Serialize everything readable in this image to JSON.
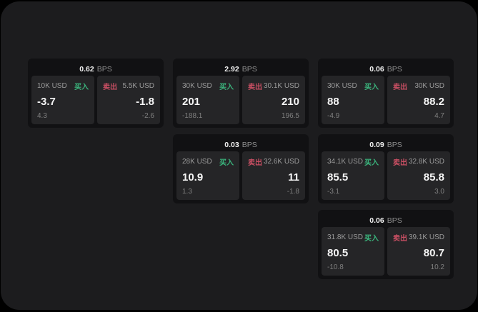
{
  "page": {
    "bps_suffix": "BPS",
    "buy_label": "买入",
    "sell_label": "卖出"
  },
  "colors": {
    "background": "#000000",
    "panel_background": "#1c1c1e",
    "card_background": "#111113",
    "tile_background": "#252527",
    "buy": "#3bb77e",
    "sell": "#c94f63",
    "value_text": "#f5f5f5",
    "muted_text": "#9b9b9b"
  },
  "cards": [
    {
      "bps": "0.62",
      "buy_amount": "10K USD",
      "buy_value": "-3.7",
      "buy_sub": "4.3",
      "sell_amount": "5.5K USD",
      "sell_value": "-1.8",
      "sell_sub": "-2.6"
    },
    {
      "bps": "2.92",
      "buy_amount": "30K USD",
      "buy_value": "201",
      "buy_sub": "-188.1",
      "sell_amount": "30.1K USD",
      "sell_value": "210",
      "sell_sub": "196.5"
    },
    {
      "bps": "0.06",
      "buy_amount": "30K USD",
      "buy_value": "88",
      "buy_sub": "-4.9",
      "sell_amount": "30K USD",
      "sell_value": "88.2",
      "sell_sub": "4.7"
    },
    {
      "bps": "0.03",
      "buy_amount": "28K USD",
      "buy_value": "10.9",
      "buy_sub": "1.3",
      "sell_amount": "32.6K USD",
      "sell_value": "11",
      "sell_sub": "-1.8"
    },
    {
      "bps": "0.09",
      "buy_amount": "34.1K USD",
      "buy_value": "85.5",
      "buy_sub": "-3.1",
      "sell_amount": "32.8K USD",
      "sell_value": "85.8",
      "sell_sub": "3.0"
    },
    {
      "bps": "0.06",
      "buy_amount": "31.8K USD",
      "buy_value": "80.5",
      "buy_sub": "-10.8",
      "sell_amount": "39.1K USD",
      "sell_value": "80.7",
      "sell_sub": "10.2"
    }
  ]
}
